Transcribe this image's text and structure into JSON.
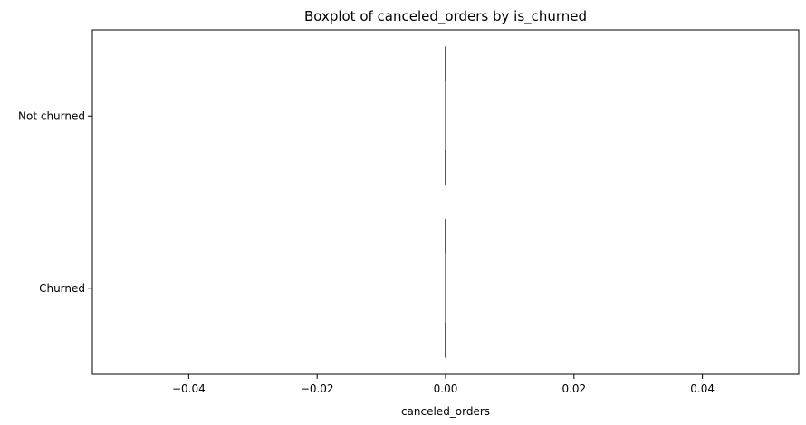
{
  "chart_data": {
    "type": "boxplot",
    "orientation": "horizontal",
    "title": "Boxplot of canceled_orders by is_churned",
    "xlabel": "canceled_orders",
    "ylabel": "",
    "xlim": [
      -0.055,
      0.055
    ],
    "x_ticks": [
      -0.04,
      -0.02,
      0.0,
      0.02,
      0.04
    ],
    "x_tick_labels": [
      "−0.04",
      "−0.02",
      "0.00",
      "0.02",
      "0.04"
    ],
    "categories": [
      "Not churned",
      "Churned"
    ],
    "series": [
      {
        "category": "Not churned",
        "min": 0.0,
        "q1": 0.0,
        "median": 0.0,
        "q3": 0.0,
        "max": 0.0
      },
      {
        "category": "Churned",
        "min": 0.0,
        "q1": 0.0,
        "median": 0.0,
        "q3": 0.0,
        "max": 0.0
      }
    ],
    "grid": false,
    "colors": {
      "axis": "#000000",
      "box_line": "#3f3f3f"
    }
  }
}
